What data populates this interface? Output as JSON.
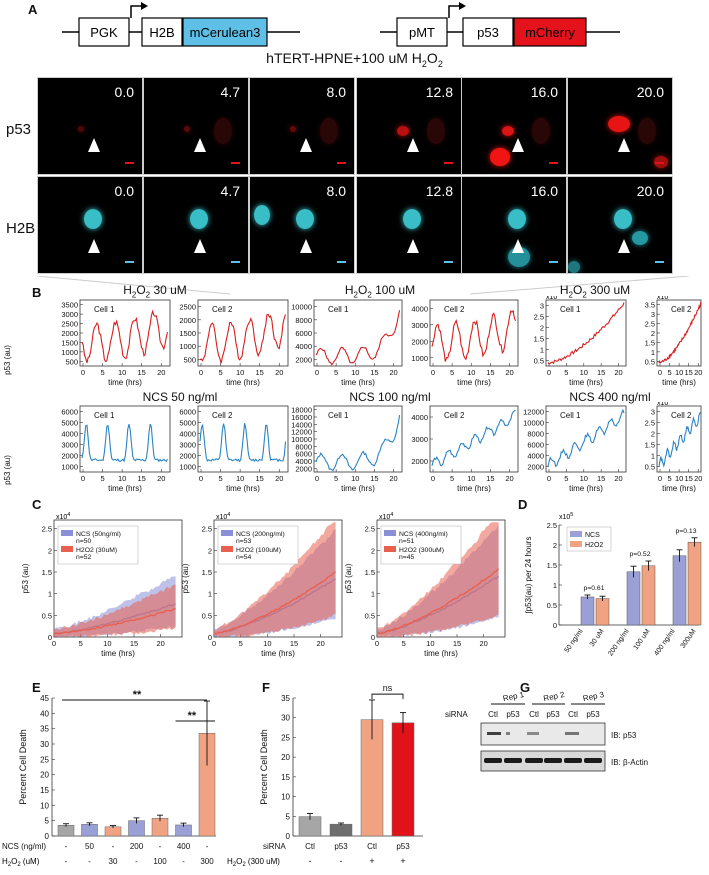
{
  "panel_letters": {
    "A": "A",
    "B": "B",
    "C": "C",
    "D": "D",
    "E": "E",
    "F": "F",
    "G": "G"
  },
  "panelA": {
    "construct1": [
      "PGK",
      "H2B",
      "mCerulean3"
    ],
    "construct2": [
      "pMT",
      "p53",
      "mCherry"
    ],
    "title_main": "hTERT-HPNE+100 uM H",
    "title_sub": "2",
    "title_end": "O",
    "title_sub2": "2",
    "row_labels": [
      "p53",
      "H2B"
    ],
    "timepoints": [
      "0.0",
      "4.7",
      "8.0",
      "12.8",
      "16.0",
      "20.0"
    ]
  },
  "panelB": {
    "row1_titles": [
      {
        "pre": "H",
        "sub": "2",
        "mid": "O",
        "sub2": "2",
        "post": " 30 uM"
      },
      {
        "pre": "H",
        "sub": "2",
        "mid": "O",
        "sub2": "2",
        "post": " 100 uM"
      },
      {
        "pre": "H",
        "sub": "2",
        "mid": "O",
        "sub2": "2",
        "post": " 300 uM"
      }
    ],
    "row2_titles": [
      "NCS 50 ng/ml",
      "NCS 100 ng/ml",
      "NCS 400 ng/ml"
    ],
    "ylabel": "p53 (au)",
    "xlabel": "time (hrs)",
    "cell_labels": [
      "Cell 1",
      "Cell 2"
    ],
    "exp_label": "x10",
    "exp_sup": "4",
    "row1_yticks": [
      [
        "500",
        "1000",
        "1500",
        "2000",
        "2500",
        "3000",
        "3500"
      ],
      [
        "500",
        "1000",
        "1500",
        "2000",
        "2500"
      ],
      [
        "2000",
        "4000",
        "6000",
        "8000",
        "10000"
      ],
      [
        "1000",
        "2000",
        "3000",
        "4000"
      ],
      [
        "0.5",
        "1",
        "1.5",
        "2",
        "2.5",
        "3"
      ],
      [
        "0.5",
        "1",
        "1.5",
        "2",
        "2.5",
        "3",
        "3.5"
      ]
    ],
    "row2_yticks": [
      [
        "1000",
        "2000",
        "3000",
        "4000",
        "5000",
        "6000"
      ],
      [
        "1000",
        "2000",
        "3000",
        "4000",
        "5000",
        "6000"
      ],
      [
        "2000",
        "4000",
        "6000",
        "8000",
        "10000",
        "12000",
        "14000",
        "16000",
        "18000"
      ],
      [
        "2000",
        "3000",
        "4000"
      ],
      [
        "2000",
        "4000",
        "6000",
        "8000",
        "10000",
        "12000"
      ],
      [
        "0.5",
        "1",
        "1.5",
        "2",
        "2.5",
        "3"
      ]
    ],
    "xticks": [
      "0",
      "5",
      "10",
      "15",
      "20"
    ]
  },
  "panelC": {
    "ylabel": "p53 (au)",
    "xlabel": "time (hrs)",
    "exp_label": "x10",
    "exp_sup": "4",
    "yticks": [
      "0",
      "0.5",
      "1",
      "1.5",
      "2",
      "2.5"
    ],
    "xticks": [
      "0",
      "5",
      "10",
      "15",
      "20"
    ],
    "legends": [
      [
        {
          "text": "NCS (50ng/ml)",
          "sub": "n=50"
        },
        {
          "text": "H2O2 (30uM)",
          "sub": "n=52"
        }
      ],
      [
        {
          "text": "NCS (200ng/ml)",
          "sub": "n=53"
        },
        {
          "text": "H2O2 (100uM)",
          "sub": "n=54"
        }
      ],
      [
        {
          "text": "NCS (400ng/ml)",
          "sub": "n=51"
        },
        {
          "text": "H2O2 (300uM)",
          "sub": "n=45"
        }
      ]
    ]
  },
  "panelE": {
    "ylabel": "Percent Cell Death",
    "yticks": [
      "0",
      "5",
      "10",
      "15",
      "20",
      "25",
      "30",
      "35",
      "40",
      "45"
    ],
    "sig1": "**",
    "sig2": "**",
    "row_ncs_label": "NCS (ng/ml)",
    "row_ncs": [
      "-",
      "50",
      "-",
      "200",
      "-",
      "400",
      "-"
    ],
    "row_h2o2_label_pre": "H",
    "row_h2o2_label_sub": "2",
    "row_h2o2_label_mid": "O",
    "row_h2o2_label_sub2": "2",
    "row_h2o2_label_post": " (uM)",
    "row_h2o2": [
      "-",
      "-",
      "30",
      "-",
      "100",
      "-",
      "300"
    ]
  },
  "panelF": {
    "ylabel": "Percent Cell Death",
    "yticks": [
      "0",
      "5",
      "10",
      "15",
      "20",
      "25",
      "30",
      "35"
    ],
    "sig": "ns",
    "sirna_label": "siRNA",
    "sirna": [
      "Ctl",
      "p53",
      "Ctl",
      "p53"
    ],
    "h2o2_label_pre": "H",
    "h2o2_label_sub": "2",
    "h2o2_label_mid": "O",
    "h2o2_label_sub2": "2",
    "h2o2_label_post": " (300 uM)",
    "h2o2": [
      "-",
      "-",
      "+",
      "+"
    ]
  },
  "panelG": {
    "reps": [
      "Rep 1",
      "Rep 2",
      "Rep 3"
    ],
    "sirna_label": "siRNA",
    "lanes": [
      "Ctl",
      "p53",
      "Ctl",
      "p53",
      "Ctl",
      "p53"
    ],
    "blot1": "IB: p53",
    "blot2": "IB: β-Actin"
  },
  "chart_data": [
    {
      "id": "D",
      "type": "bar",
      "ylabel": "∫p53(au) per 24 hours",
      "yexp": "x10",
      "yexp_sup": "5",
      "ylim": [
        0,
        2.5
      ],
      "yticks": [
        "0",
        "0.5",
        "1",
        "1.5",
        "2",
        "2.5"
      ],
      "categories": [
        "50 ng/ml\n30 uM",
        "200 ng/ml\n100 uM",
        "400 ng/ml\n300uM"
      ],
      "cat_labels_ncs": [
        "50 ng/ml",
        "200 ng/ml",
        "400 ng/ml"
      ],
      "cat_labels_h2o2": [
        "30 uM",
        "100 uM",
        "300uM"
      ],
      "pvalues": [
        "p=0.61",
        "p=0.52",
        "p=0.13"
      ],
      "series": [
        {
          "name": "NCS",
          "color": "#9a9fd6",
          "values": [
            0.7,
            1.33,
            1.73
          ],
          "err": [
            0.05,
            0.14,
            0.15
          ]
        },
        {
          "name": "H2O2",
          "color": "#f0a282",
          "values": [
            0.66,
            1.48,
            2.07
          ],
          "err": [
            0.06,
            0.12,
            0.11
          ]
        }
      ]
    },
    {
      "id": "E",
      "type": "bar",
      "ylim": [
        0,
        45
      ],
      "values": [
        3.5,
        3.8,
        3.0,
        5.0,
        5.8,
        3.6,
        33.5
      ],
      "err": [
        0.5,
        0.5,
        0.4,
        0.9,
        1.0,
        0.6,
        10.5
      ],
      "colors": [
        "#a6a6a6",
        "#9a9fd6",
        "#f0a282",
        "#9a9fd6",
        "#f0a282",
        "#9a9fd6",
        "#f0a282"
      ]
    },
    {
      "id": "F",
      "type": "bar",
      "ylim": [
        0,
        35
      ],
      "values": [
        4.9,
        3.0,
        29.5,
        28.7
      ],
      "err": [
        0.8,
        0.3,
        5.0,
        2.6
      ],
      "colors": [
        "#a6a6a6",
        "#6e6e6e",
        "#f0a282",
        "#e0131b"
      ]
    }
  ]
}
